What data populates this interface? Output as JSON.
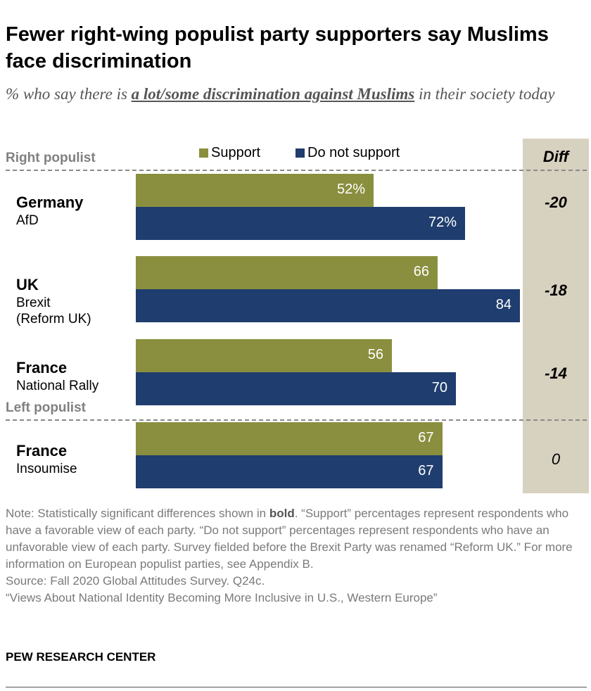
{
  "title": "Fewer right-wing populist party supporters say Muslims face discrimination",
  "subtitle": {
    "pre": "% who say there is ",
    "emph": "a lot/some discrimination against Muslims",
    "post": " in their society today"
  },
  "note": {
    "pre": "Note: Statistically significant differences shown in ",
    "bold": "bold",
    "post": ". “Support” percentages represent respondents who have a favorable view of each party. “Do not support” percentages represent respondents who have an unfavorable view of each party. Survey fielded before the Brexit Party was renamed “Reform UK.” For more information on European populist parties, see Appendix B."
  },
  "source": "Source: Fall 2020 Global Attitudes Survey. Q24c.",
  "report": "“Views About National Identity Becoming More Inclusive in U.S., Western Europe”",
  "logo": "PEW RESEARCH CENTER",
  "colors": {
    "support": "#8a8f3f",
    "not_support": "#1f3d6e",
    "diff_bg": "#d7d1bf"
  },
  "chart_data": {
    "type": "bar",
    "diff_header": "Diff",
    "legend": [
      "Support",
      "Do not support"
    ],
    "groups": [
      {
        "label": "Right populist"
      },
      {
        "label": "Left populist"
      }
    ],
    "rows": [
      {
        "group": 0,
        "country": "Germany",
        "party": [
          "AfD"
        ],
        "support": 52,
        "not_support": 72,
        "support_label": "52%",
        "not_support_label": "72%",
        "diff": "-20",
        "significant": true
      },
      {
        "group": 0,
        "country": "UK",
        "party": [
          "Brexit",
          "(Reform UK)"
        ],
        "support": 66,
        "not_support": 84,
        "support_label": "66",
        "not_support_label": "84",
        "diff": "-18",
        "significant": true
      },
      {
        "group": 0,
        "country": "France",
        "party": [
          "National Rally"
        ],
        "support": 56,
        "not_support": 70,
        "support_label": "56",
        "not_support_label": "70",
        "diff": "-14",
        "significant": true
      },
      {
        "group": 1,
        "country": "France",
        "party": [
          "Insoumise"
        ],
        "support": 67,
        "not_support": 67,
        "support_label": "67",
        "not_support_label": "67",
        "diff": "0",
        "significant": false
      }
    ]
  }
}
